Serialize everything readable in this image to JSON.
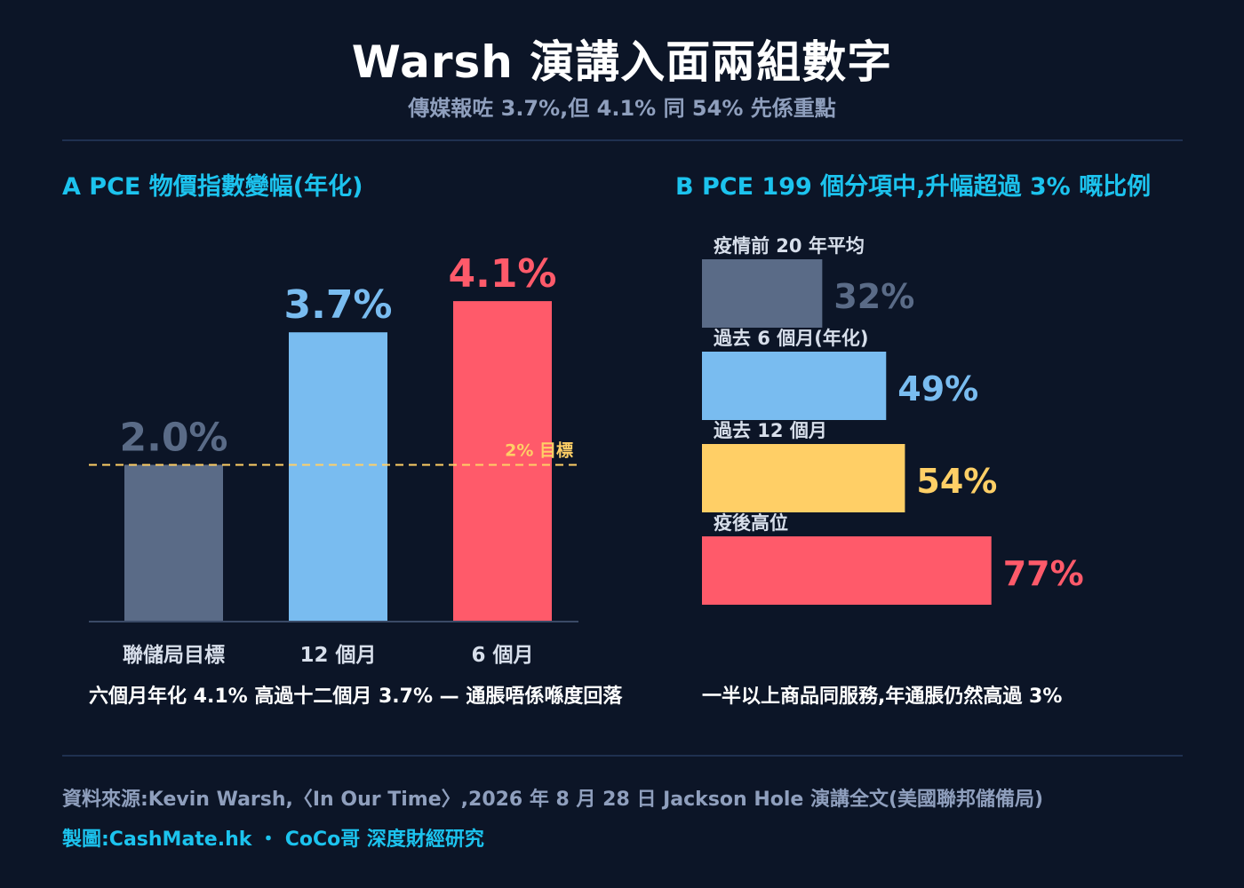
{
  "header": {
    "title": "Warsh 演講入面兩組數字",
    "subtitle": "傳媒報咗 3.7%,但 4.1% 同 54% 先係重點"
  },
  "panel_a": {
    "heading": "A  PCE 物價指數變幅(年化)",
    "caption": "六個月年化 4.1% 高過十二個月 3.7% — 通脹唔係喺度回落"
  },
  "panel_b": {
    "heading": "B  PCE 199 個分項中,升幅超過 3% 嘅比例",
    "caption": "一半以上商品同服務,年通脹仍然高過 3%"
  },
  "footer": {
    "source": "資料來源:Kevin Warsh,〈In Our Time〉,2026 年 8 月 28 日 Jackson Hole 演講全文(美國聯邦儲備局)",
    "credit": "製圖:CashMate.hk ・ CoCo哥 深度財經研究"
  },
  "chart_data": [
    {
      "type": "bar",
      "title": "A  PCE 物價指數變幅(年化)",
      "categories": [
        "聯儲局目標",
        "12 個月",
        "6 個月"
      ],
      "values": [
        2.0,
        3.7,
        4.1
      ],
      "value_labels": [
        "2.0%",
        "3.7%",
        "4.1%"
      ],
      "colors": [
        "#5a6b87",
        "#79bcf0",
        "#ff5a6a"
      ],
      "ylim": [
        0,
        4.5
      ],
      "reference_line": {
        "value": 2.0,
        "label": "2% 目標",
        "color": "#ffcf66"
      },
      "grid": false
    },
    {
      "type": "bar",
      "orientation": "horizontal",
      "title": "B  PCE 199 個分項中,升幅超過 3% 嘅比例",
      "categories": [
        "疫情前 20 年平均",
        "過去 6 個月(年化)",
        "過去 12 個月",
        "疫後高位"
      ],
      "values": [
        32,
        49,
        54,
        77
      ],
      "value_labels": [
        "32%",
        "49%",
        "54%",
        "77%"
      ],
      "colors": [
        "#5a6b87",
        "#79bcf0",
        "#ffcf66",
        "#ff5a6a"
      ],
      "xlim": [
        0,
        100
      ],
      "grid": false
    }
  ]
}
